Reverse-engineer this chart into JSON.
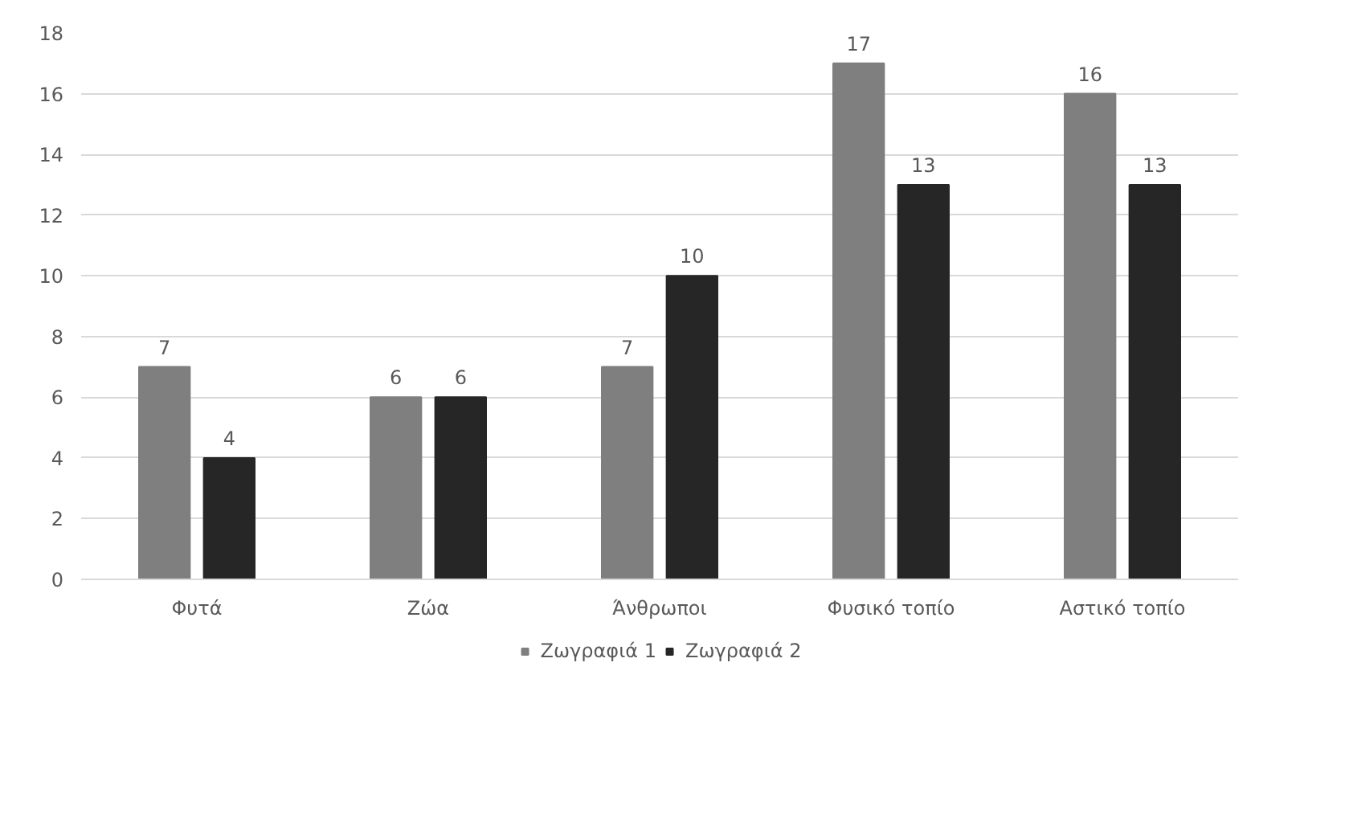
{
  "chart_data": {
    "type": "bar",
    "categories": [
      "Φυτά",
      "Ζώα",
      "Άνθρωποι",
      "Φυσικό τοπίο",
      "Αστικό τοπίο"
    ],
    "series": [
      {
        "name": "Ζωγραφιά 1",
        "color": "#7f7f7f",
        "values": [
          7,
          6,
          7,
          17,
          16
        ]
      },
      {
        "name": "Ζωγραφιά 2",
        "color": "#262626",
        "values": [
          4,
          6,
          10,
          13,
          13
        ]
      }
    ],
    "ylim": [
      0,
      18
    ],
    "yticks": [
      0,
      2,
      4,
      6,
      8,
      10,
      12,
      14,
      16,
      18
    ],
    "grid": "y",
    "legend": "bottom",
    "data_labels": true
  }
}
